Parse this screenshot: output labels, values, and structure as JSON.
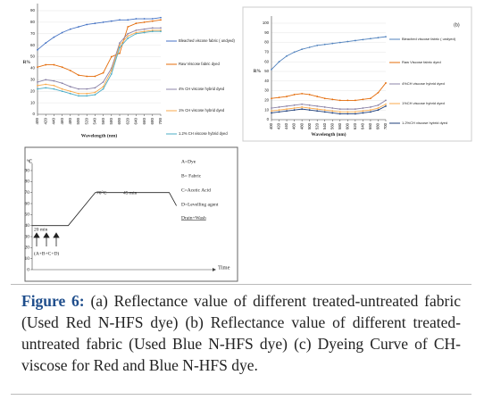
{
  "chart_data": [
    {
      "type": "line",
      "ylabel": "R%",
      "xlabel": "Wavelength (nm)",
      "x": [
        400,
        420,
        440,
        460,
        480,
        500,
        520,
        540,
        560,
        580,
        600,
        620,
        640,
        660,
        680,
        700
      ],
      "xlim": [
        400,
        700
      ],
      "xticks": [
        400,
        420,
        440,
        460,
        480,
        500,
        520,
        540,
        560,
        580,
        600,
        620,
        640,
        660,
        680,
        700
      ],
      "ylim": [
        0,
        90
      ],
      "yticks": [
        0,
        10,
        20,
        30,
        40,
        50,
        60,
        70,
        80,
        90
      ],
      "grid": true,
      "series": [
        {
          "name": "Bleached viscose fabric ( undyed)",
          "color": "#4472c4",
          "values": [
            56,
            62,
            67,
            71,
            74,
            76,
            78,
            79,
            80,
            81,
            82,
            82,
            83,
            83,
            83,
            84
          ]
        },
        {
          "name": "Raw Viscose fabric dyed",
          "color": "#e46c0a",
          "values": [
            41,
            43,
            43,
            41,
            38,
            34,
            33,
            33,
            36,
            50,
            53,
            76,
            79,
            80,
            81,
            82
          ]
        },
        {
          "name": "4% CH viscose hybrid dyed",
          "color": "#8c84a8",
          "values": [
            28,
            30,
            29,
            27,
            24,
            22,
            22,
            23,
            28,
            40,
            62,
            70,
            73,
            74,
            75,
            75
          ]
        },
        {
          "name": "1% CH viscose hybrid dyed",
          "color": "#f9a94b",
          "values": [
            25,
            26,
            25,
            22,
            20,
            18,
            18,
            19,
            24,
            38,
            60,
            68,
            71,
            72,
            73,
            73
          ]
        },
        {
          "name": "1.2% CH viscose hybrid dyed",
          "color": "#4bacc6",
          "values": [
            22,
            23,
            22,
            20,
            18,
            16,
            16,
            17,
            22,
            35,
            58,
            66,
            70,
            71,
            72,
            72
          ]
        }
      ]
    },
    {
      "type": "line",
      "title": "(b)",
      "ylabel": "R%",
      "xlabel": "Wavelength (nm)",
      "x": [
        400,
        420,
        440,
        460,
        480,
        500,
        520,
        540,
        560,
        580,
        600,
        620,
        640,
        660,
        680,
        700
      ],
      "xlim": [
        400,
        700
      ],
      "xticks": [
        400,
        420,
        440,
        460,
        480,
        500,
        520,
        540,
        560,
        580,
        600,
        620,
        640,
        660,
        680,
        700
      ],
      "ylim": [
        0,
        100
      ],
      "yticks": [
        0,
        10,
        20,
        30,
        40,
        50,
        60,
        70,
        80,
        90,
        100
      ],
      "grid": true,
      "series": [
        {
          "name": "Bleached viscose fabric ( undyed)",
          "color": "#4f81bd",
          "values": [
            52,
            60,
            66,
            70,
            73,
            75,
            77,
            78,
            79,
            80,
            81,
            82,
            83,
            84,
            85,
            86
          ]
        },
        {
          "name": "Raw Viscose fabric dyed",
          "color": "#e46c0a",
          "values": [
            22,
            23,
            24,
            26,
            27,
            26,
            24,
            22,
            21,
            20,
            20,
            20,
            21,
            22,
            28,
            38
          ]
        },
        {
          "name": "4%CH viscose hybrid dyed",
          "color": "#8c84a8",
          "values": [
            12,
            13,
            14,
            15,
            16,
            15,
            14,
            13,
            12,
            11,
            11,
            11,
            12,
            13,
            15,
            20
          ]
        },
        {
          "name": "1%CH viscose hybrid dyed",
          "color": "#f9a94b",
          "values": [
            9,
            10,
            11,
            12,
            13,
            12,
            11,
            10,
            9,
            8,
            8,
            8,
            9,
            10,
            12,
            16
          ]
        },
        {
          "name": "1.2%CH viscose hybrid dyed",
          "color": "#1f3f7a",
          "values": [
            7,
            8,
            9,
            10,
            11,
            10,
            9,
            8,
            7,
            6,
            6,
            6,
            7,
            8,
            10,
            14
          ]
        }
      ]
    },
    {
      "type": "line",
      "ylabel": "°C",
      "xlabel": "Time",
      "x": [
        0,
        20,
        35,
        76,
        80
      ],
      "xlim": [
        0,
        100
      ],
      "ylim": [
        0,
        90
      ],
      "yticks": [
        0,
        10,
        20,
        30,
        40,
        50,
        60,
        70,
        80,
        90
      ],
      "grid": false,
      "series": [
        {
          "color": "#222222",
          "values": [
            40,
            40,
            70,
            70,
            58
          ]
        }
      ],
      "annotations": [
        {
          "text": "A=Dye"
        },
        {
          "text": "B= Fabric"
        },
        {
          "text": "C=Acetic Acid"
        },
        {
          "text": "D=Levelling agent"
        },
        {
          "text": "70°C"
        },
        {
          "text": "45 min"
        },
        {
          "text": "Drain+Wash",
          "color": "#c00000"
        },
        {
          "text": "20 min"
        },
        {
          "text": "(A+B+C+D)"
        }
      ]
    }
  ],
  "caption": {
    "label": "Figure 6:",
    "text": " (a) Reflectance value of different treated-untreated fabric (Used Red N-HFS dye) (b) Reflectance value of different treated-untreated fabric (Used Blue N-HFS dye) (c) Dyeing Curve of CH-viscose for Red and Blue N-HFS dye."
  }
}
